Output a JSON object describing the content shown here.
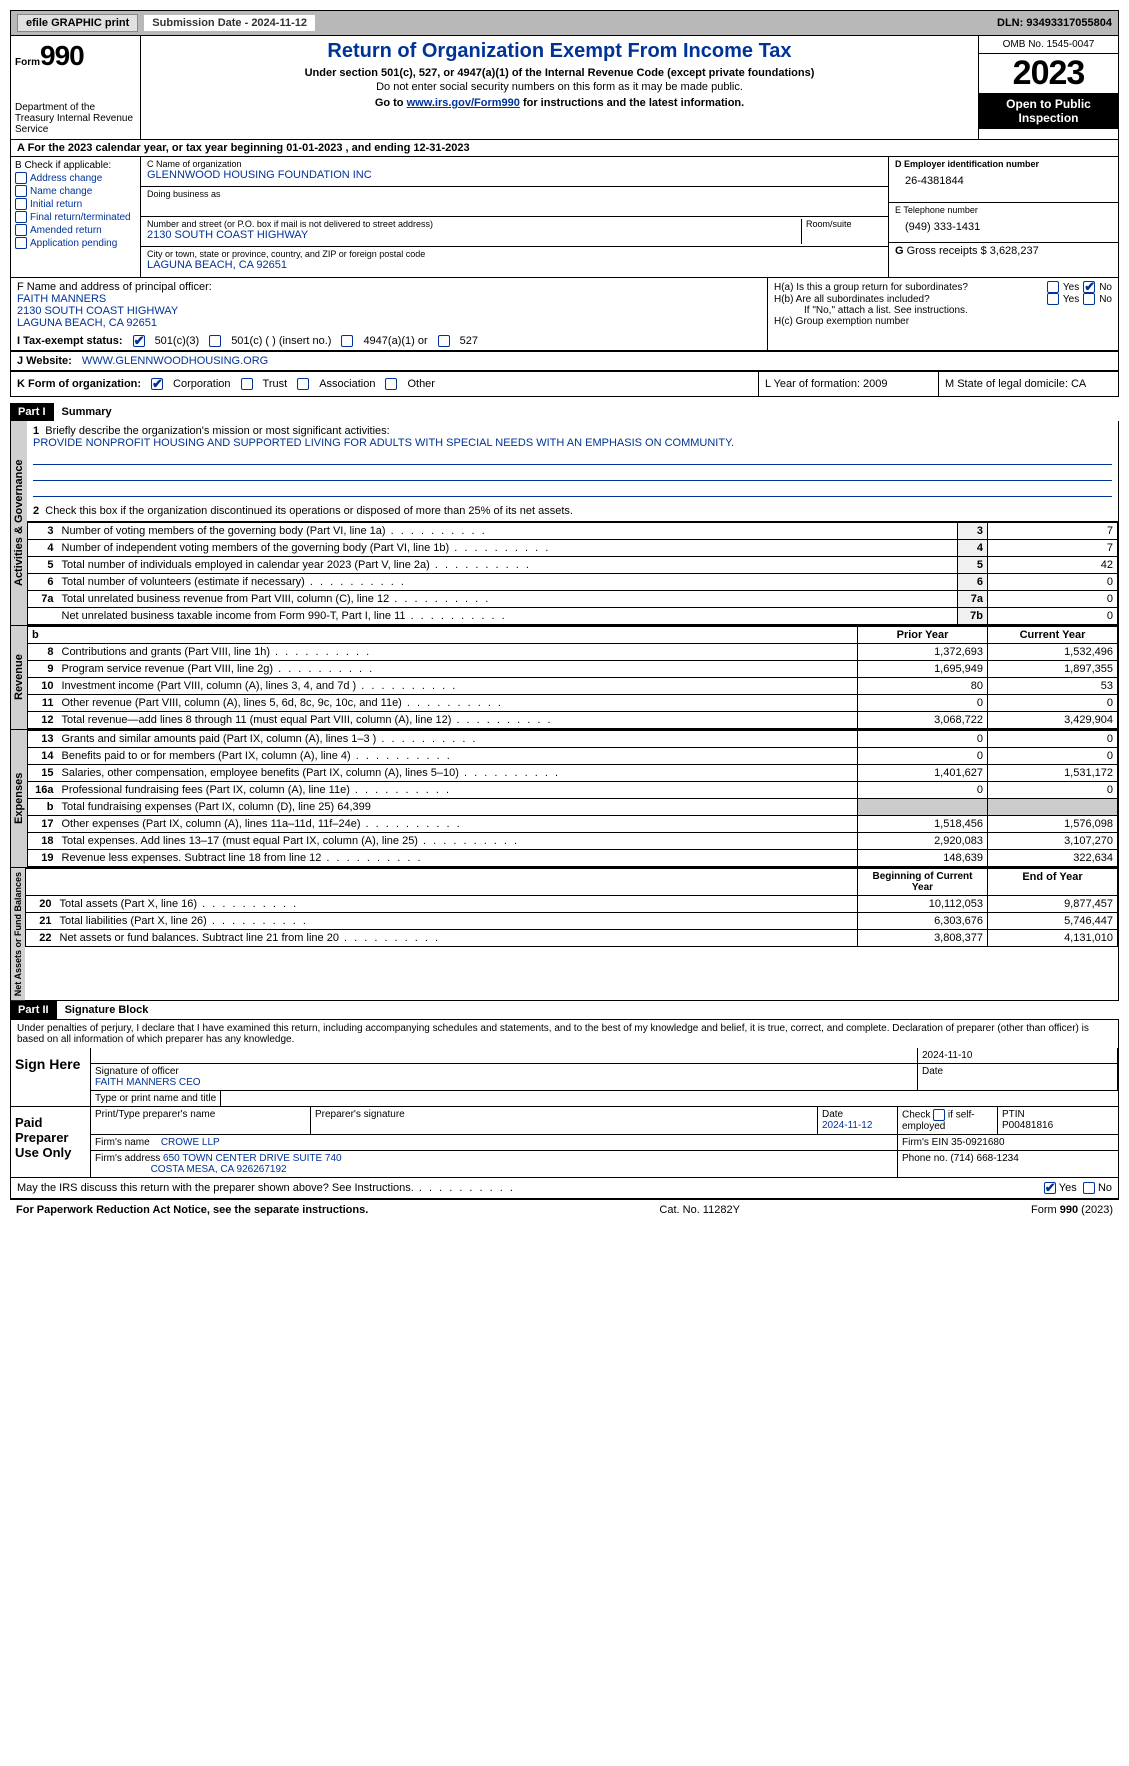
{
  "topbar": {
    "efile": "efile GRAPHIC print",
    "sub_date_label": "Submission Date - 2024-11-12",
    "dln": "DLN: 93493317055804"
  },
  "header": {
    "form_label": "Form",
    "form_num": "990",
    "dept": "Department of the Treasury Internal Revenue Service",
    "title": "Return of Organization Exempt From Income Tax",
    "sub1": "Under section 501(c), 527, or 4947(a)(1) of the Internal Revenue Code (except private foundations)",
    "sub2": "Do not enter social security numbers on this form as it may be made public.",
    "sub3_pre": "Go to ",
    "sub3_link": "www.irs.gov/Form990",
    "sub3_post": " for instructions and the latest information.",
    "omb": "OMB No. 1545-0047",
    "year": "2023",
    "inspect": "Open to Public Inspection"
  },
  "line_a": "A For the 2023 calendar year, or tax year beginning 01-01-2023   , and ending 12-31-2023",
  "box_b": {
    "label": "B Check if applicable:",
    "items": [
      "Address change",
      "Name change",
      "Initial return",
      "Final return/terminated",
      "Amended return",
      "Application pending"
    ]
  },
  "box_c": {
    "name_label": "C Name of organization",
    "name": "GLENNWOOD HOUSING FOUNDATION INC",
    "dba_label": "Doing business as",
    "addr_label": "Number and street (or P.O. box if mail is not delivered to street address)",
    "room_label": "Room/suite",
    "addr": "2130 SOUTH COAST HIGHWAY",
    "city_label": "City or town, state or province, country, and ZIP or foreign postal code",
    "city": "LAGUNA BEACH, CA  92651"
  },
  "box_d": {
    "label": "D Employer identification number",
    "val": "26-4381844"
  },
  "box_e": {
    "label": "E Telephone number",
    "val": "(949) 333-1431"
  },
  "box_g": {
    "label": "G",
    "text": "Gross receipts $ 3,628,237"
  },
  "box_f": {
    "label": "F  Name and address of principal officer:",
    "name": "FAITH MANNERS",
    "addr1": "2130 SOUTH COAST HIGHWAY",
    "addr2": "LAGUNA BEACH, CA  92651"
  },
  "box_h": {
    "ha_label": "H(a)  Is this a group return for subordinates?",
    "hb_label": "H(b)  Are all subordinates included?",
    "hb_note": "If \"No,\" attach a list. See instructions.",
    "hc_label": "H(c)  Group exemption number",
    "yes": "Yes",
    "no": "No"
  },
  "row_i": {
    "label": "I    Tax-exempt status:",
    "opt1": "501(c)(3)",
    "opt2": "501(c) (  ) (insert no.)",
    "opt3": "4947(a)(1) or",
    "opt4": "527"
  },
  "row_j": {
    "label": "J    Website:",
    "val": "WWW.GLENNWOODHOUSING.ORG"
  },
  "row_k": {
    "label": "K Form of organization:",
    "opts": [
      "Corporation",
      "Trust",
      "Association",
      "Other"
    ],
    "l_label": "L Year of formation: 2009",
    "m_label": "M State of legal domicile: CA"
  },
  "part1": {
    "num": "Part I",
    "title": "Summary"
  },
  "summary": {
    "side1": "Activities & Governance",
    "side2": "Revenue",
    "side3": "Expenses",
    "side4": "Net Assets or Fund Balances",
    "q1": "Briefly describe the organization's mission or most significant activities:",
    "mission": "PROVIDE NONPROFIT HOUSING AND SUPPORTED LIVING FOR ADULTS WITH SPECIAL NEEDS WITH AN EMPHASIS ON COMMUNITY.",
    "q2": "Check this box      if the organization discontinued its operations or disposed of more than 25% of its net assets.",
    "rows_gov": [
      {
        "n": "3",
        "d": "Number of voting members of the governing body (Part VI, line 1a)",
        "box": "3",
        "v": "7"
      },
      {
        "n": "4",
        "d": "Number of independent voting members of the governing body (Part VI, line 1b)",
        "box": "4",
        "v": "7"
      },
      {
        "n": "5",
        "d": "Total number of individuals employed in calendar year 2023 (Part V, line 2a)",
        "box": "5",
        "v": "42"
      },
      {
        "n": "6",
        "d": "Total number of volunteers (estimate if necessary)",
        "box": "6",
        "v": "0"
      },
      {
        "n": "7a",
        "d": "Total unrelated business revenue from Part VIII, column (C), line 12",
        "box": "7a",
        "v": "0"
      },
      {
        "n": "",
        "d": "Net unrelated business taxable income from Form 990-T, Part I, line 11",
        "box": "7b",
        "v": "0"
      }
    ],
    "col_prior": "Prior Year",
    "col_current": "Current Year",
    "rows_rev": [
      {
        "n": "8",
        "d": "Contributions and grants (Part VIII, line 1h)",
        "p": "1,372,693",
        "c": "1,532,496"
      },
      {
        "n": "9",
        "d": "Program service revenue (Part VIII, line 2g)",
        "p": "1,695,949",
        "c": "1,897,355"
      },
      {
        "n": "10",
        "d": "Investment income (Part VIII, column (A), lines 3, 4, and 7d )",
        "p": "80",
        "c": "53"
      },
      {
        "n": "11",
        "d": "Other revenue (Part VIII, column (A), lines 5, 6d, 8c, 9c, 10c, and 11e)",
        "p": "0",
        "c": "0"
      },
      {
        "n": "12",
        "d": "Total revenue—add lines 8 through 11 (must equal Part VIII, column (A), line 12)",
        "p": "3,068,722",
        "c": "3,429,904"
      }
    ],
    "rows_exp": [
      {
        "n": "13",
        "d": "Grants and similar amounts paid (Part IX, column (A), lines 1–3 )",
        "p": "0",
        "c": "0"
      },
      {
        "n": "14",
        "d": "Benefits paid to or for members (Part IX, column (A), line 4)",
        "p": "0",
        "c": "0"
      },
      {
        "n": "15",
        "d": "Salaries, other compensation, employee benefits (Part IX, column (A), lines 5–10)",
        "p": "1,401,627",
        "c": "1,531,172"
      },
      {
        "n": "16a",
        "d": "Professional fundraising fees (Part IX, column (A), line 11e)",
        "p": "0",
        "c": "0"
      },
      {
        "n": "b",
        "d": "Total fundraising expenses (Part IX, column (D), line 25) 64,399",
        "p": "",
        "c": "",
        "grey": true
      },
      {
        "n": "17",
        "d": "Other expenses (Part IX, column (A), lines 11a–11d, 11f–24e)",
        "p": "1,518,456",
        "c": "1,576,098"
      },
      {
        "n": "18",
        "d": "Total expenses. Add lines 13–17 (must equal Part IX, column (A), line 25)",
        "p": "2,920,083",
        "c": "3,107,270"
      },
      {
        "n": "19",
        "d": "Revenue less expenses. Subtract line 18 from line 12",
        "p": "148,639",
        "c": "322,634"
      }
    ],
    "col_begin": "Beginning of Current Year",
    "col_end": "End of Year",
    "rows_net": [
      {
        "n": "20",
        "d": "Total assets (Part X, line 16)",
        "p": "10,112,053",
        "c": "9,877,457"
      },
      {
        "n": "21",
        "d": "Total liabilities (Part X, line 26)",
        "p": "6,303,676",
        "c": "5,746,447"
      },
      {
        "n": "22",
        "d": "Net assets or fund balances. Subtract line 21 from line 20",
        "p": "3,808,377",
        "c": "4,131,010"
      }
    ]
  },
  "part2": {
    "num": "Part II",
    "title": "Signature Block"
  },
  "sig_decl": "Under penalties of perjury, I declare that I have examined this return, including accompanying schedules and statements, and to the best of my knowledge and belief, it is true, correct, and complete. Declaration of preparer (other than officer) is based on all information of which preparer has any knowledge.",
  "sign_here": {
    "label": "Sign Here",
    "date": "2024-11-10",
    "sig_label": "Signature of officer",
    "name": "FAITH MANNERS CEO",
    "type_label": "Type or print name and title",
    "date_label": "Date"
  },
  "paid_prep": {
    "label": "Paid Preparer Use Only",
    "h1": "Print/Type preparer's name",
    "h2": "Preparer's signature",
    "h3": "Date",
    "date": "2024-11-12",
    "h4_pre": "Check",
    "h4_post": "if self-employed",
    "h5": "PTIN",
    "ptin": "P00481816",
    "firm_label": "Firm's name",
    "firm": "CROWE LLP",
    "ein_label": "Firm's EIN",
    "ein": "35-0921680",
    "addr_label": "Firm's address",
    "addr1": "650 TOWN CENTER DRIVE SUITE 740",
    "addr2": "COSTA MESA, CA  926267192",
    "phone_label": "Phone no.",
    "phone": "(714) 668-1234"
  },
  "irs_discuss": {
    "q": "May the IRS discuss this return with the preparer shown above? See Instructions.",
    "yes": "Yes",
    "no": "No"
  },
  "footer": {
    "left": "For Paperwork Reduction Act Notice, see the separate instructions.",
    "mid": "Cat. No. 11282Y",
    "right_pre": "Form ",
    "right_bold": "990",
    "right_post": " (2023)"
  }
}
